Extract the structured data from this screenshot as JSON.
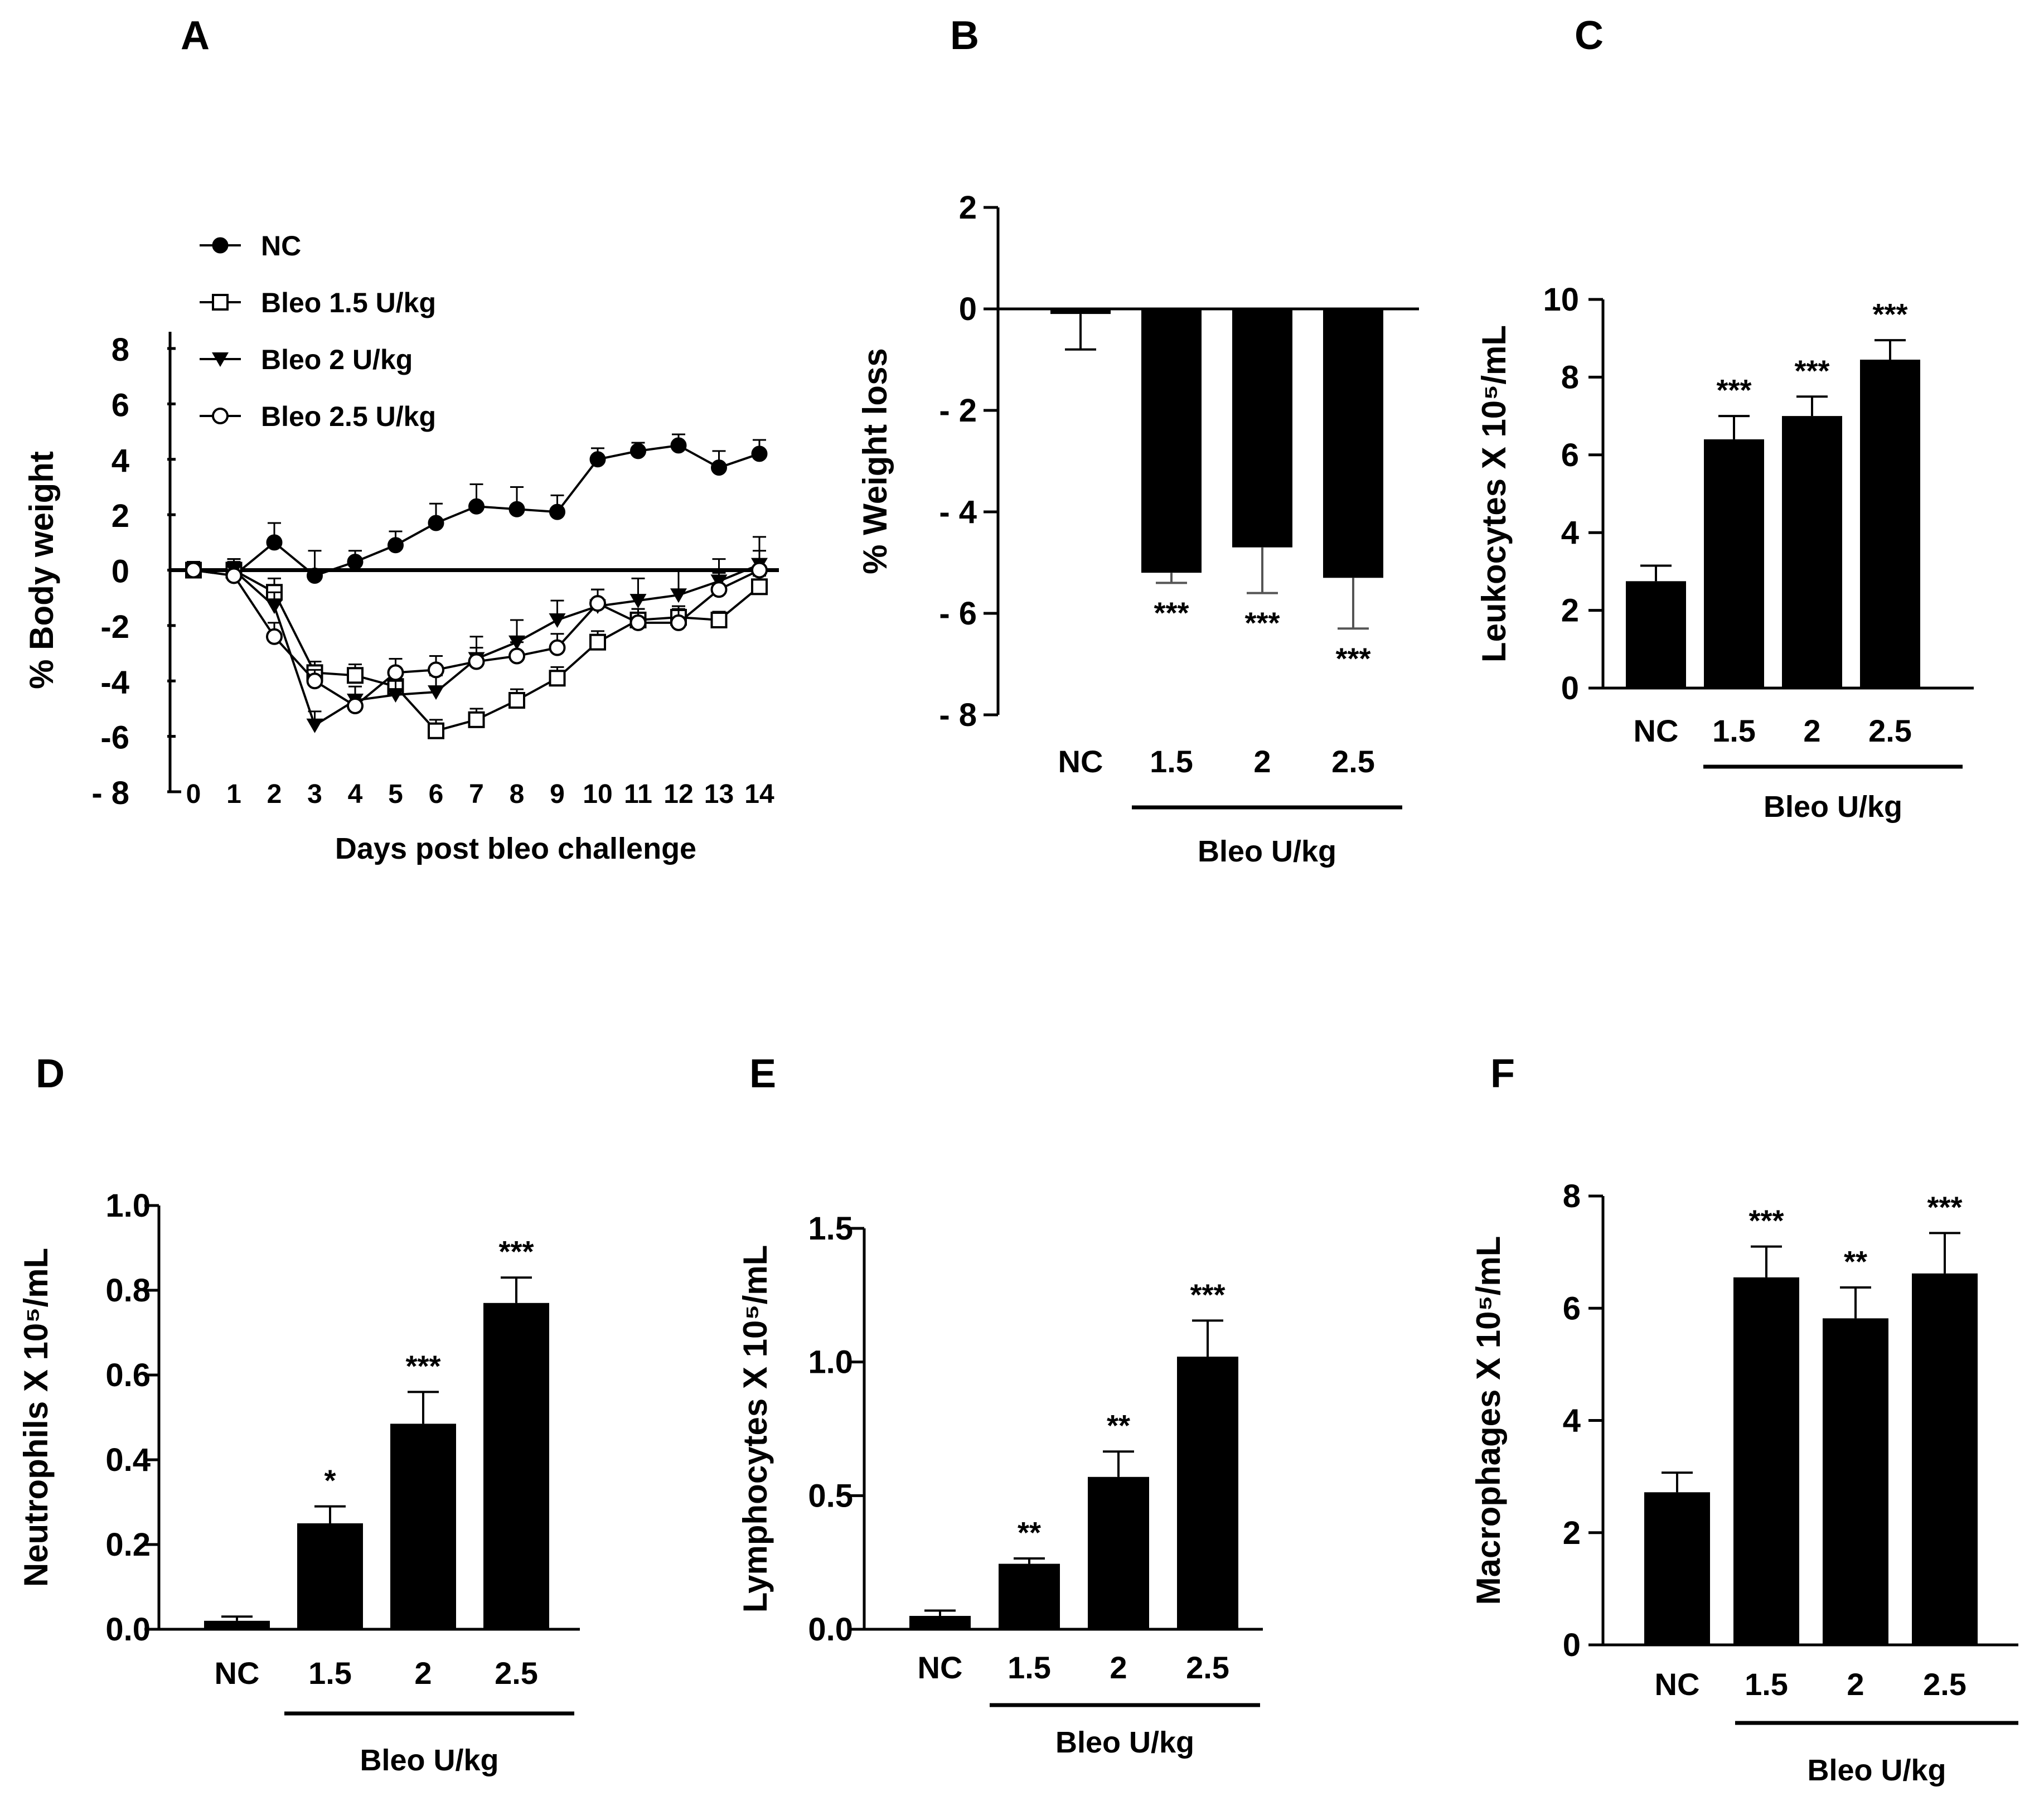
{
  "figure": {
    "panels": [
      "A",
      "B",
      "C",
      "D",
      "E",
      "F"
    ]
  },
  "chart_data": [
    {
      "panel": "A",
      "type": "line",
      "title": "",
      "xlabel": "Days post bleo challenge",
      "ylabel": "% Body weight",
      "x": [
        0,
        1,
        2,
        3,
        4,
        5,
        6,
        7,
        8,
        9,
        10,
        11,
        12,
        13,
        14
      ],
      "ylim": [
        -8,
        8
      ],
      "yticks": [
        8,
        6,
        4,
        2,
        0,
        -2,
        -4,
        -6,
        -8
      ],
      "ytick_labels": [
        "8",
        "6",
        "4",
        "2",
        "0",
        "-2",
        "-4",
        "-6",
        "- 8"
      ],
      "legend_position": "top-left",
      "series": [
        {
          "name": "NC",
          "marker": "filled-circle",
          "values": [
            0,
            -0.2,
            1.0,
            -0.2,
            0.3,
            0.9,
            1.7,
            2.3,
            2.2,
            2.1,
            4.0,
            4.3,
            4.5,
            3.7,
            4.2
          ],
          "errors": [
            0.3,
            0.5,
            0.7,
            0.9,
            0.4,
            0.5,
            0.7,
            0.8,
            0.8,
            0.6,
            0.4,
            0.3,
            0.4,
            0.6,
            0.5
          ]
        },
        {
          "name": "Bleo 1.5 U/kg",
          "marker": "open-square",
          "values": [
            0,
            0,
            -0.8,
            -3.7,
            -3.8,
            -4.2,
            -5.8,
            -5.4,
            -4.7,
            -3.9,
            -2.6,
            -1.8,
            -1.7,
            -1.8,
            -0.6
          ],
          "errors": [
            0.3,
            0.4,
            0.5,
            0.4,
            0.4,
            0.5,
            0.4,
            0.4,
            0.4,
            0.4,
            0.4,
            0.4,
            0.4,
            0.3,
            0.4
          ]
        },
        {
          "name": "Bleo 2 U/kg",
          "marker": "filled-triangle-down",
          "values": [
            0,
            0,
            -1.3,
            -5.6,
            -4.7,
            -4.5,
            -4.4,
            -3.2,
            -2.6,
            -1.8,
            -1.3,
            -1.1,
            -0.9,
            -0.4,
            0.2
          ],
          "errors": [
            0.3,
            0.4,
            0.5,
            0.5,
            0.5,
            0.5,
            0.6,
            0.8,
            0.8,
            0.7,
            0.6,
            0.8,
            0.9,
            0.8,
            1.0
          ]
        },
        {
          "name": "Bleo 2.5 U/kg",
          "marker": "open-circle",
          "values": [
            0,
            -0.2,
            -2.4,
            -4.0,
            -4.9,
            -3.7,
            -3.6,
            -3.3,
            -3.1,
            -2.8,
            -1.2,
            -1.9,
            -1.9,
            -0.7,
            0
          ],
          "errors": [
            0.3,
            0.4,
            0.5,
            0.4,
            0.4,
            0.5,
            0.5,
            0.5,
            0.5,
            0.5,
            0.5,
            0.5,
            0.5,
            0.6,
            0.7
          ]
        }
      ]
    },
    {
      "panel": "B",
      "type": "bar",
      "title": "",
      "ylabel": "% Weight loss",
      "xlabel": "Bleo U/kg",
      "categories": [
        "NC",
        "1.5",
        "2",
        "2.5"
      ],
      "values": [
        -0.1,
        -5.2,
        -4.7,
        -5.3
      ],
      "errors": [
        0.7,
        0.2,
        0.9,
        1.0
      ],
      "significance": [
        "",
        "***",
        "***",
        "***"
      ],
      "ylim": [
        -8,
        2
      ],
      "yticks": [
        2,
        0,
        -2,
        -4,
        -6,
        -8
      ],
      "ytick_labels": [
        "2",
        "0",
        "- 2",
        "- 4",
        "- 6",
        "- 8"
      ]
    },
    {
      "panel": "C",
      "type": "bar",
      "title": "",
      "ylabel": "Leukocytes X 10⁵/mL",
      "xlabel": "Bleo U/kg",
      "categories": [
        "NC",
        "1.5",
        "2",
        "2.5"
      ],
      "values": [
        2.75,
        6.4,
        7.0,
        8.45
      ],
      "errors": [
        0.4,
        0.6,
        0.5,
        0.5
      ],
      "significance": [
        "",
        "***",
        "***",
        "***"
      ],
      "ylim": [
        0,
        10
      ],
      "yticks": [
        0,
        2,
        4,
        6,
        8,
        10
      ],
      "ytick_labels": [
        "0",
        "2",
        "4",
        "6",
        "8",
        "10"
      ]
    },
    {
      "panel": "D",
      "type": "bar",
      "title": "",
      "ylabel": "Neutrophils X 10⁵/mL",
      "xlabel": "Bleo U/kg",
      "categories": [
        "NC",
        "1.5",
        "2",
        "2.5"
      ],
      "values": [
        0.02,
        0.25,
        0.485,
        0.77
      ],
      "errors": [
        0.01,
        0.04,
        0.075,
        0.06
      ],
      "significance": [
        "",
        "*",
        "***",
        "***"
      ],
      "ylim": [
        0,
        1.0
      ],
      "yticks": [
        0,
        0.2,
        0.4,
        0.6,
        0.8,
        1.0
      ],
      "ytick_labels": [
        "0.0",
        "0.2",
        "0.4",
        "0.6",
        "0.8",
        "1.0"
      ]
    },
    {
      "panel": "E",
      "type": "bar",
      "title": "",
      "ylabel": "Lymphocytes X 10⁵/mL",
      "xlabel": "Bleo U/kg",
      "categories": [
        "NC",
        "1.5",
        "2",
        "2.5"
      ],
      "values": [
        0.05,
        0.245,
        0.57,
        1.02
      ],
      "errors": [
        0.02,
        0.02,
        0.095,
        0.135
      ],
      "significance": [
        "",
        "**",
        "**",
        "***"
      ],
      "ylim": [
        0,
        1.5
      ],
      "yticks": [
        0,
        0.5,
        1.0,
        1.5
      ],
      "ytick_labels": [
        "0.0",
        "0.5",
        "1.0",
        "1.5"
      ]
    },
    {
      "panel": "F",
      "type": "bar",
      "title": "",
      "ylabel": "Macrophages X 10⁵/mL",
      "xlabel": "Bleo U/kg",
      "categories": [
        "NC",
        "1.5",
        "2",
        "2.5"
      ],
      "values": [
        2.72,
        6.55,
        5.82,
        6.62
      ],
      "errors": [
        0.35,
        0.55,
        0.55,
        0.72
      ],
      "significance": [
        "",
        "***",
        "**",
        "***"
      ],
      "ylim": [
        0,
        8
      ],
      "yticks": [
        0,
        2,
        4,
        6,
        8
      ],
      "ytick_labels": [
        "0",
        "2",
        "4",
        "6",
        "8"
      ]
    }
  ]
}
